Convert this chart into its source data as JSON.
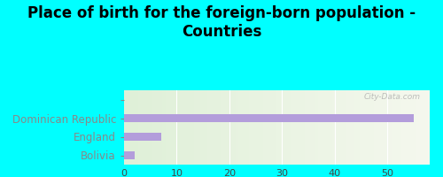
{
  "title": "Place of birth for the foreign-born population -\nCountries",
  "categories": [
    "Bolivia",
    "England",
    "Dominican Republic",
    ""
  ],
  "values": [
    2,
    7,
    55,
    0
  ],
  "bar_color": "#b39ddb",
  "background_outer": "#00ffff",
  "background_inner_left": "#dff0d8",
  "background_inner_right": "#f5f8ee",
  "xlim": [
    0,
    58
  ],
  "xticks": [
    0,
    10,
    20,
    30,
    40,
    50
  ],
  "title_fontsize": 12,
  "label_fontsize": 8.5,
  "watermark": "City-Data.com"
}
